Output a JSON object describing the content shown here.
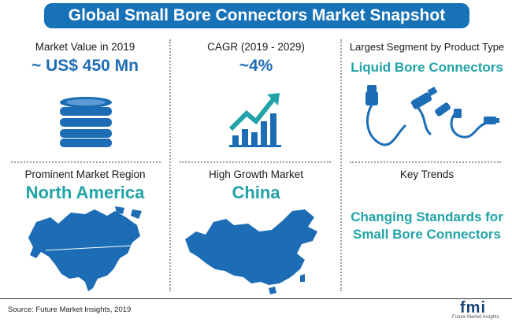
{
  "title": "Global Small Bore Connectors Market Snapshot",
  "cells": {
    "market_value": {
      "label": "Market Value in 2019",
      "value": "~ US$ 450 Mn",
      "icon": "coin-stack-icon"
    },
    "cagr": {
      "label": "CAGR (2019 - 2029)",
      "value": "~4%",
      "icon": "growth-chart-icon"
    },
    "largest_segment": {
      "label": "Largest Segment by Product Type",
      "value": "Liquid Bore Connectors",
      "icon": "connector-icon"
    },
    "prominent_region": {
      "label": "Prominent Market Region",
      "value": "North America",
      "icon": "north-america-map-icon"
    },
    "high_growth": {
      "label": "High Growth Market",
      "value": "China",
      "icon": "china-map-icon"
    },
    "key_trends": {
      "label": "Key Trends",
      "value_line1": "Changing Standards for",
      "value_line2": "Small Bore Connectors"
    }
  },
  "footer": {
    "source": "Source: Future Market Insights, 2019",
    "logo_text": "fmi",
    "logo_sub": "Future Market Insights"
  },
  "colors": {
    "brand_blue": "#1872b8",
    "value_blue": "#1c6db5",
    "value_teal": "#21a3a8"
  }
}
